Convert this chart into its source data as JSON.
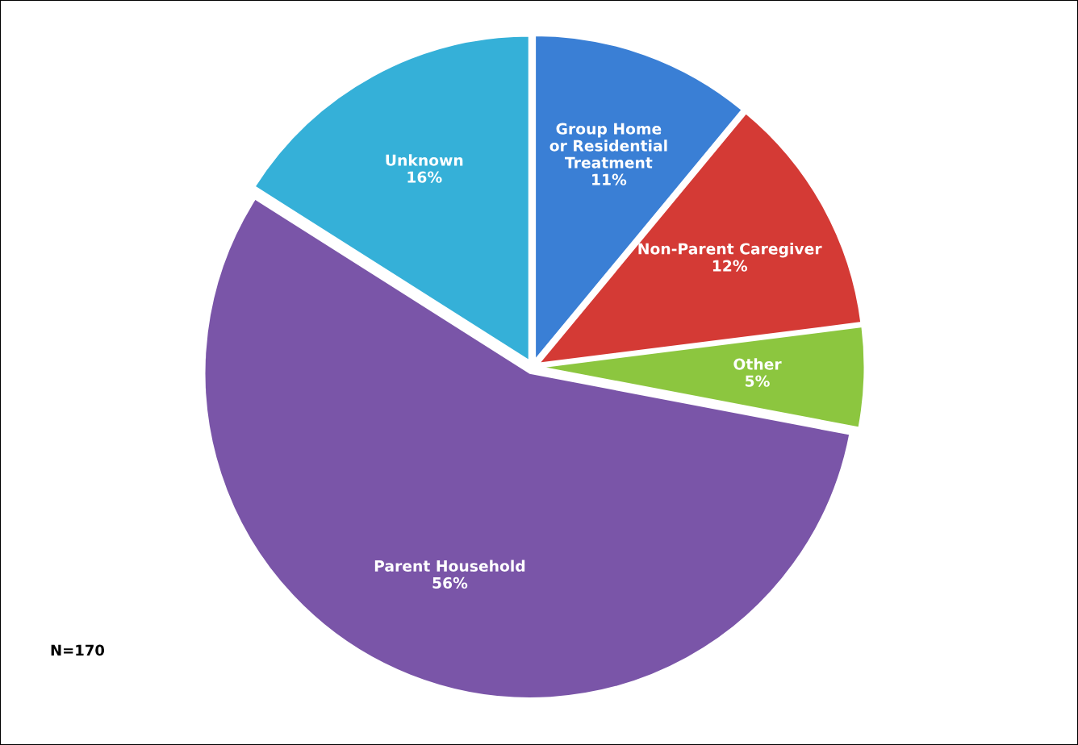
{
  "chart_data": {
    "type": "pie",
    "categories": [
      "Group Home\nor Residential\nTreatment",
      "Non-Parent Caregiver",
      "Other",
      "Parent Household",
      "Unknown"
    ],
    "values": [
      11,
      12,
      5,
      56,
      16
    ],
    "value_labels": [
      "11%",
      "12%",
      "5%",
      "56%",
      "16%"
    ],
    "colors": [
      "#3a7fd5",
      "#d43a35",
      "#8cc63f",
      "#7a55a8",
      "#35b0d8"
    ],
    "legend": false,
    "annotations": [
      "N=170"
    ]
  }
}
